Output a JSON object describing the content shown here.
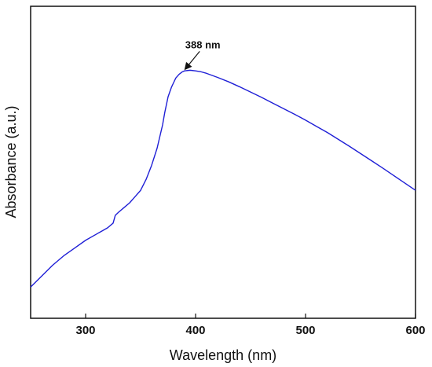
{
  "chart_data": {
    "type": "line",
    "title": "",
    "xlabel": "Wavelength (nm)",
    "ylabel": "Absorbance (a.u.)",
    "xlim": [
      250,
      600
    ],
    "ylim": [
      0,
      1
    ],
    "xticks": [
      300,
      400,
      500,
      600
    ],
    "yticks_visible": false,
    "grid": false,
    "legend": "none",
    "series": [
      {
        "color": "#1f1fd6",
        "x": [
          250,
          260,
          270,
          280,
          290,
          300,
          310,
          320,
          325,
          327,
          330,
          335,
          340,
          345,
          350,
          355,
          360,
          365,
          370,
          372,
          375,
          378,
          380,
          382,
          385,
          388,
          390,
          395,
          400,
          405,
          410,
          420,
          430,
          440,
          450,
          460,
          470,
          480,
          490,
          500,
          510,
          520,
          530,
          540,
          550,
          560,
          570,
          580,
          590,
          600
        ],
        "y": [
          0.1,
          0.135,
          0.17,
          0.2,
          0.225,
          0.25,
          0.27,
          0.29,
          0.305,
          0.33,
          0.34,
          0.355,
          0.37,
          0.39,
          0.41,
          0.445,
          0.49,
          0.545,
          0.62,
          0.66,
          0.71,
          0.74,
          0.755,
          0.77,
          0.782,
          0.79,
          0.793,
          0.795,
          0.793,
          0.79,
          0.785,
          0.772,
          0.758,
          0.742,
          0.725,
          0.708,
          0.69,
          0.672,
          0.654,
          0.635,
          0.615,
          0.595,
          0.573,
          0.551,
          0.528,
          0.505,
          0.482,
          0.458,
          0.434,
          0.41
        ]
      }
    ],
    "annotations": [
      {
        "text": "388 nm",
        "x": 388,
        "y": 0.79
      }
    ]
  }
}
